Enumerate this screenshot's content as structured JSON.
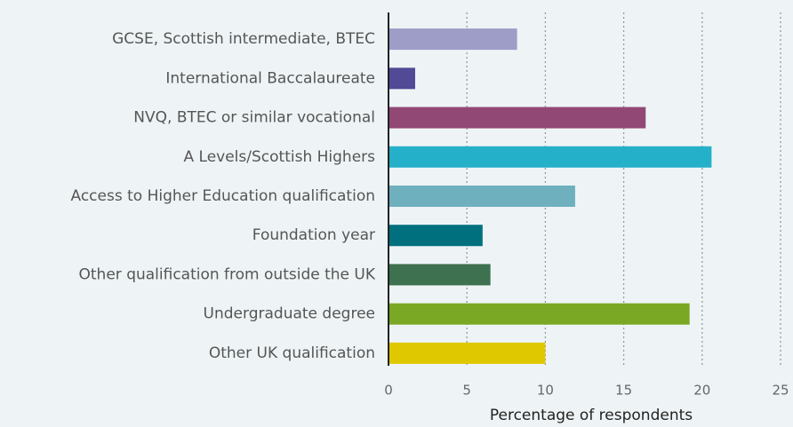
{
  "chart_data": {
    "type": "bar",
    "orientation": "horizontal",
    "categories": [
      "GCSE, Scottish intermediate, BTEC",
      "International Baccalaureate",
      "NVQ, BTEC or similar vocational",
      "A Levels/Scottish Highers",
      "Access to Higher Education qualification",
      "Foundation year",
      "Other qualification from outside the UK",
      "Undergraduate degree",
      "Other UK qualification"
    ],
    "values": [
      8.2,
      1.7,
      16.4,
      20.6,
      11.9,
      6.0,
      6.5,
      19.2,
      10.0
    ],
    "colors": [
      "#9e9dc8",
      "#524a96",
      "#924874",
      "#25b0c9",
      "#6fb0be",
      "#00707f",
      "#3e7150",
      "#7aa824",
      "#e0c800"
    ],
    "xlabel": "Percentage of respondents",
    "xlim": [
      0,
      25
    ],
    "xticks": [
      0,
      5,
      10,
      15,
      20,
      25
    ],
    "grid": true
  }
}
